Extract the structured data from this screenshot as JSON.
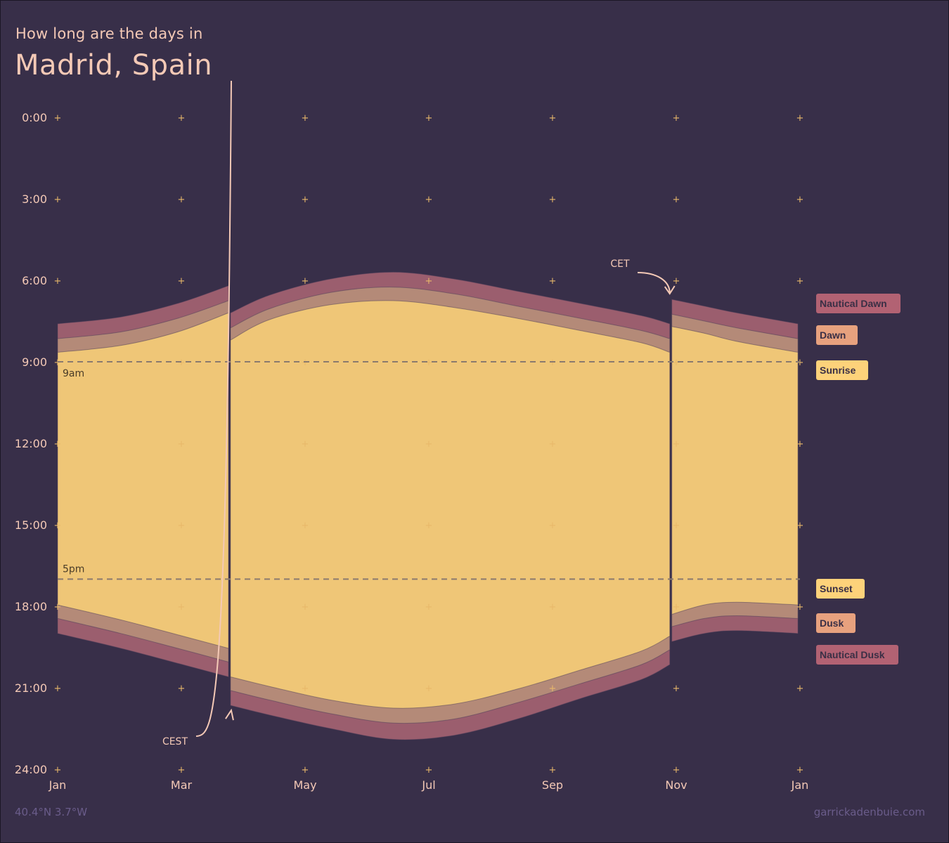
{
  "header": {
    "subtitle": "How long are the days in",
    "title": "Madrid, Spain"
  },
  "footer": {
    "coordinates": "40.4°N 3.7°W",
    "credit": "garrickadenbuie.com"
  },
  "colors": {
    "background": "#382f49",
    "day": "#efc677",
    "civil_twilight": "#b48a78",
    "nautical_twilight": "#9b5e6e",
    "tick_marks": "#e8b86a",
    "label_nautical": "#b26273",
    "label_civil": "#e7a17e",
    "label_sun": "#fdd27a"
  },
  "chart_data": {
    "type": "area",
    "x_label": "",
    "y_label": "",
    "x_ticks": [
      "Jan",
      "Mar",
      "May",
      "Jul",
      "Sep",
      "Nov",
      "Jan"
    ],
    "y_ticks": [
      "0:00",
      "3:00",
      "6:00",
      "9:00",
      "12:00",
      "15:00",
      "18:00",
      "21:00",
      "24:00"
    ],
    "y_reversed": true,
    "y_range": [
      0,
      24
    ],
    "reference_lines": [
      {
        "label": "9am",
        "hour": 9
      },
      {
        "label": "5pm",
        "hour": 17
      }
    ],
    "annotations": [
      {
        "label": "CEST",
        "date": "Mar 27"
      },
      {
        "label": "CET",
        "date": "Oct 30"
      }
    ],
    "legend": [
      "Nautical Dawn",
      "Dawn",
      "Sunrise",
      "Sunset",
      "Dusk",
      "Nautical Dusk"
    ],
    "x": [
      "Jan 1",
      "Feb 1",
      "Mar 1",
      "Mar 26",
      "Mar 27",
      "Apr 15",
      "May 15",
      "Jun 15",
      "Jul 15",
      "Aug 15",
      "Sep 15",
      "Oct 15",
      "Oct 29",
      "Oct 30",
      "Nov 15",
      "Dec 1",
      "Dec 31"
    ],
    "series": [
      {
        "name": "Nautical Dawn",
        "values": [
          7.6,
          7.35,
          6.85,
          6.2,
          7.2,
          6.55,
          5.95,
          5.7,
          5.95,
          6.4,
          6.85,
          7.3,
          7.6,
          6.7,
          6.95,
          7.2,
          7.6
        ]
      },
      {
        "name": "Dawn",
        "values": [
          8.15,
          7.9,
          7.4,
          6.75,
          7.75,
          7.05,
          6.45,
          6.25,
          6.5,
          6.95,
          7.4,
          7.85,
          8.15,
          7.25,
          7.5,
          7.75,
          8.15
        ]
      },
      {
        "name": "Sunrise",
        "values": [
          8.65,
          8.4,
          7.9,
          7.2,
          8.2,
          7.45,
          6.9,
          6.75,
          7.0,
          7.4,
          7.85,
          8.3,
          8.65,
          7.7,
          7.95,
          8.25,
          8.65
        ]
      },
      {
        "name": "Sunset",
        "values": [
          17.95,
          18.5,
          19.05,
          19.55,
          20.6,
          20.95,
          21.45,
          21.75,
          21.6,
          21.05,
          20.35,
          19.65,
          19.1,
          18.3,
          17.95,
          17.85,
          17.95
        ]
      },
      {
        "name": "Dusk",
        "values": [
          18.45,
          19.0,
          19.55,
          20.05,
          21.1,
          21.45,
          21.95,
          22.3,
          22.15,
          21.55,
          20.85,
          20.15,
          19.6,
          18.75,
          18.45,
          18.35,
          18.45
        ]
      },
      {
        "name": "Nautical Dusk",
        "values": [
          19.0,
          19.55,
          20.1,
          20.6,
          21.65,
          22.0,
          22.5,
          22.9,
          22.75,
          22.15,
          21.4,
          20.7,
          20.15,
          19.3,
          19.0,
          18.9,
          19.0
        ]
      }
    ]
  }
}
